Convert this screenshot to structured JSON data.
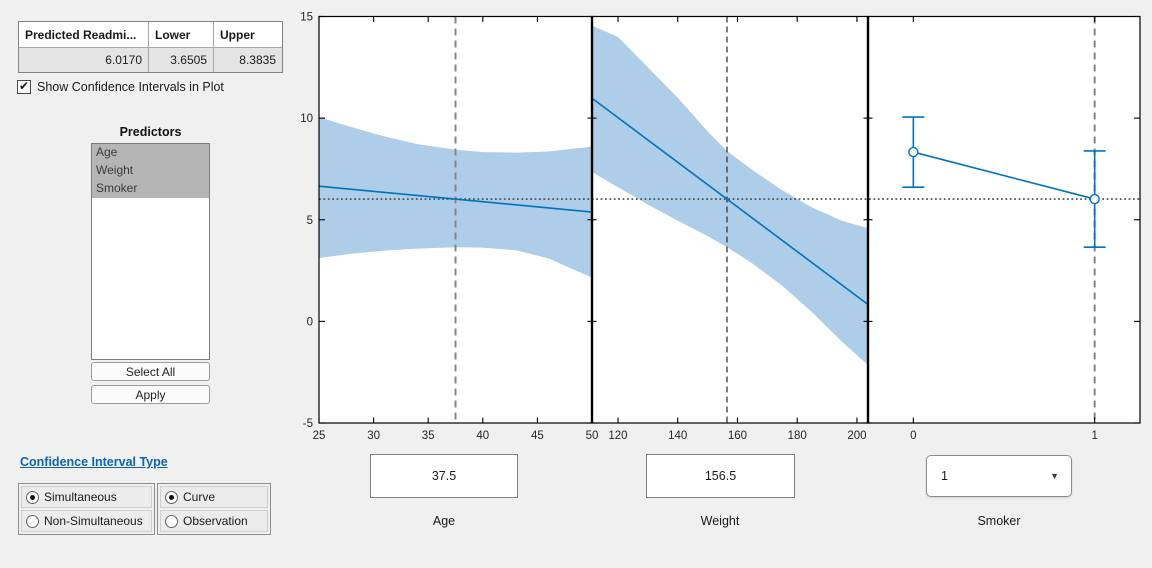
{
  "icons": {
    "check": "✔",
    "dropdown_arrow": "▼"
  },
  "summary_table": {
    "columns": [
      "Predicted Readmi...",
      "Lower",
      "Upper"
    ],
    "values": [
      "6.0170",
      "3.6505",
      "8.3835"
    ]
  },
  "show_ci_checkbox": {
    "label": "Show Confidence Intervals in Plot",
    "checked": true
  },
  "predictors": {
    "title": "Predictors",
    "items": [
      "Age",
      "Weight",
      "Smoker"
    ],
    "selected": [
      true,
      true,
      true
    ]
  },
  "buttons": {
    "select_all": "Select All",
    "apply": "Apply"
  },
  "ci_type": {
    "link": "Confidence Interval Type",
    "simultaneity": [
      {
        "label": "Simultaneous",
        "selected": true
      },
      {
        "label": "Non-Simultaneous",
        "selected": false
      }
    ],
    "bound_type": [
      {
        "label": "Curve",
        "selected": true
      },
      {
        "label": "Observation",
        "selected": false
      }
    ]
  },
  "controls": [
    {
      "name": "Age",
      "type": "edit",
      "value": "37.5"
    },
    {
      "name": "Weight",
      "type": "edit",
      "value": "156.5"
    },
    {
      "name": "Smoker",
      "type": "dropdown",
      "value": "1"
    }
  ],
  "chart_data": {
    "type": "line",
    "subtype": "prediction-slice-plot",
    "ylim": [
      -5,
      15
    ],
    "yticks": [
      -5,
      0,
      5,
      10,
      15
    ],
    "grid": false,
    "line_color": "#0072BD",
    "band_color": "#AECDE9",
    "axis_color": "#000000",
    "tick_label_color": "#262626",
    "reference_line": {
      "y": 6.017,
      "style": "dotted",
      "color": "#4a4a4a"
    },
    "panels": [
      {
        "name": "Age",
        "xlim": [
          25,
          50
        ],
        "xticks": [
          25,
          30,
          35,
          40,
          45,
          50
        ],
        "current_x": 37.5,
        "dash": {
          "color": "#858585",
          "width": 2,
          "pattern": "7 5"
        },
        "fit": {
          "x": [
            25,
            50
          ],
          "y": [
            6.65,
            5.38
          ]
        },
        "band": {
          "x": [
            25,
            28,
            31,
            34,
            37.5,
            40,
            43,
            46,
            50
          ],
          "upper": [
            10.05,
            9.55,
            9.1,
            8.72,
            8.45,
            8.33,
            8.3,
            8.36,
            8.6
          ],
          "lower": [
            3.12,
            3.33,
            3.48,
            3.58,
            3.65,
            3.63,
            3.5,
            3.1,
            2.15
          ]
        }
      },
      {
        "name": "Weight",
        "xlim": [
          111.3,
          203.7
        ],
        "xticks": [
          120,
          140,
          160,
          180,
          200
        ],
        "current_x": 156.5,
        "dash": {
          "color": "#2b2b2b",
          "width": 1.2,
          "pattern": "6 4"
        },
        "fit": {
          "x": [
            111.3,
            203.7
          ],
          "y": [
            10.98,
            0.83
          ]
        },
        "band": {
          "x": [
            111.3,
            120,
            130,
            140,
            150,
            156.5,
            165,
            175,
            185,
            195,
            203.7
          ],
          "upper": [
            14.55,
            14.0,
            12.5,
            11.0,
            9.35,
            8.38,
            7.45,
            6.45,
            5.6,
            4.95,
            4.58
          ],
          "lower": [
            7.35,
            6.6,
            5.75,
            4.95,
            4.2,
            3.65,
            2.85,
            1.75,
            0.45,
            -1.0,
            -2.15
          ]
        }
      },
      {
        "name": "Smoker",
        "xlim": [
          -0.25,
          1.25
        ],
        "xticks": [
          0,
          1
        ],
        "current_x": 1,
        "dash": {
          "color": "#858585",
          "width": 2,
          "pattern": "7 5"
        },
        "points": [
          {
            "x": 0,
            "y": 8.33,
            "lower": 6.6,
            "upper": 10.05
          },
          {
            "x": 1,
            "y": 6.017,
            "lower": 3.6505,
            "upper": 8.3835
          }
        ]
      }
    ]
  }
}
